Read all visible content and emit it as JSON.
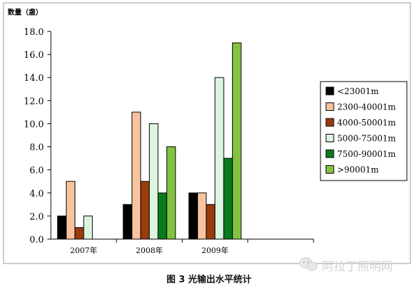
{
  "chart_data": {
    "type": "bar",
    "ylabel": "数量（盏）",
    "ylim": [
      0,
      18
    ],
    "yticks": [
      "0.0",
      "2.0",
      "4.0",
      "6.0",
      "8.0",
      "10.0",
      "12.0",
      "14.0",
      "16.0",
      "18.0"
    ],
    "categories": [
      "2007年",
      "2008年",
      "2009年"
    ],
    "series": [
      {
        "name": "<23001m",
        "color": "#000000",
        "values": [
          2,
          3,
          4
        ]
      },
      {
        "name": "2300-40001m",
        "color": "#f9c39f",
        "values": [
          5,
          11,
          4
        ]
      },
      {
        "name": "4000-50001m",
        "color": "#9a3b0c",
        "values": [
          1,
          5,
          3
        ]
      },
      {
        "name": "5000-75001m",
        "color": "#dbf5df",
        "values": [
          2,
          10,
          14
        ]
      },
      {
        "name": "7500-90001m",
        "color": "#0a7a1e",
        "values": [
          0,
          4,
          7
        ]
      },
      {
        "name": ">90001m",
        "color": "#82c341",
        "values": [
          0,
          8,
          17
        ]
      }
    ],
    "grid": false,
    "legend": "right"
  },
  "caption": "图 3  光输出水平统计",
  "watermark": "阿拉丁照明网"
}
